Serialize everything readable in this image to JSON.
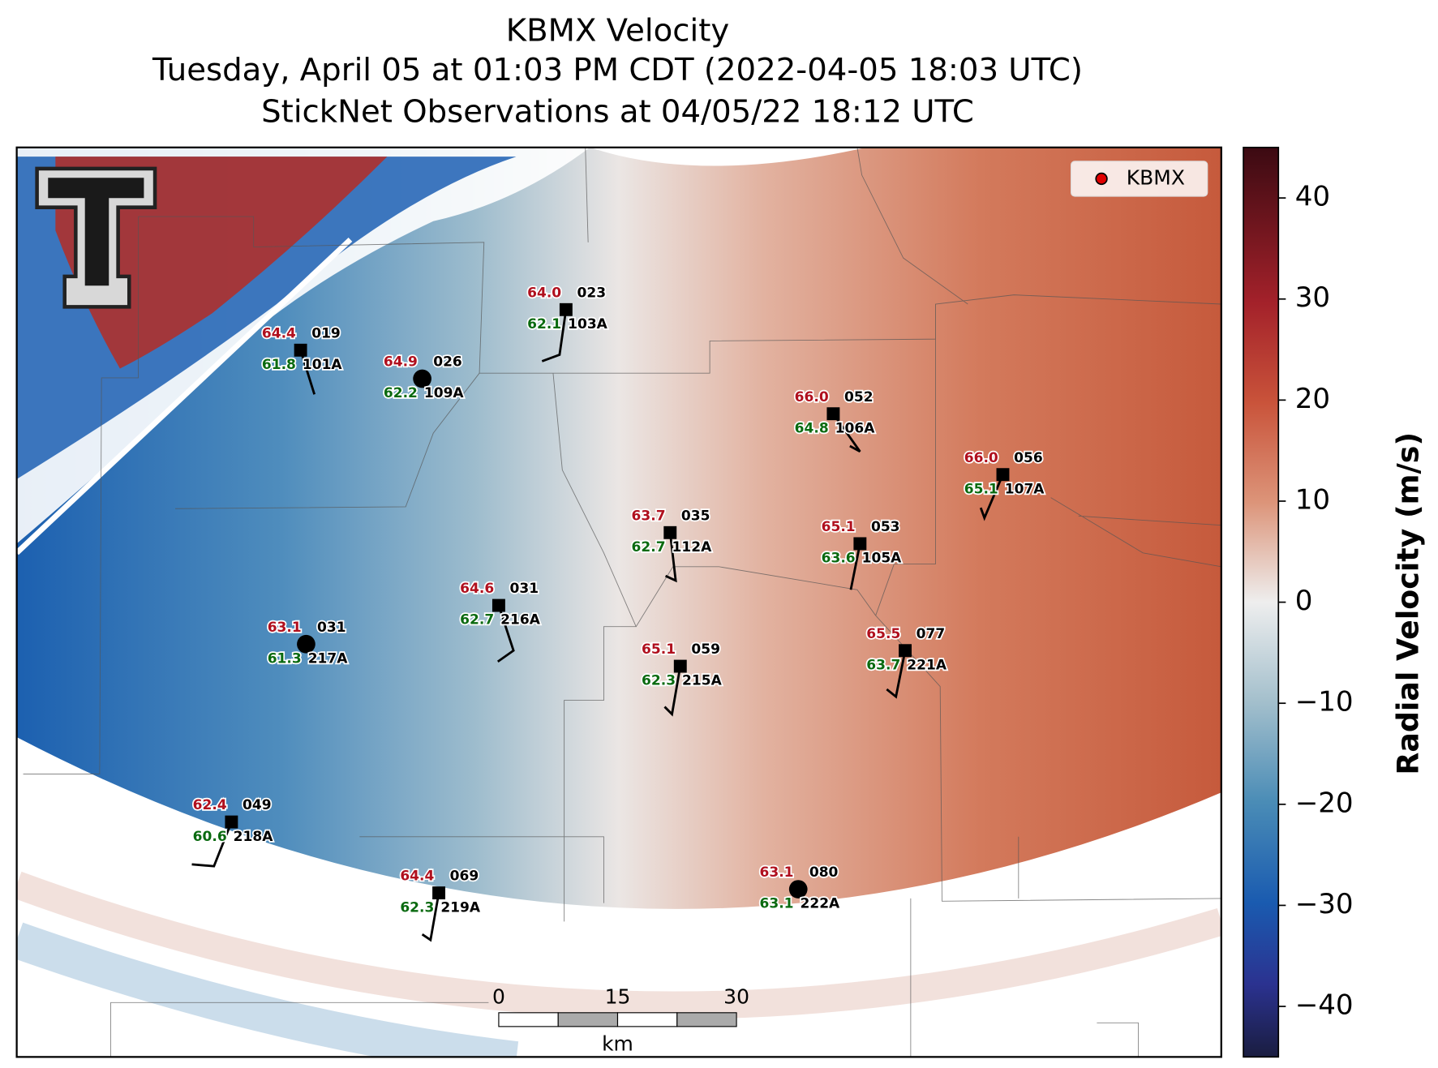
{
  "title": [
    "KBMX Velocity",
    "Tuesday, April 05 at 01:03 PM CDT (2022-04-05 18:03 UTC)",
    "StickNet Observations at 04/05/22 18:12 UTC"
  ],
  "legend": "KBMX",
  "colorbar": {
    "label": "Radial Velocity (m/s)",
    "range": [
      -45,
      45
    ],
    "ticks": [
      40,
      30,
      20,
      10,
      0,
      {
        "value": -10,
        "label": "−10"
      },
      {
        "value": -20,
        "label": "−20"
      },
      {
        "value": -30,
        "label": "−30"
      },
      {
        "value": -40,
        "label": "−40"
      }
    ]
  },
  "stations": [
    {
      "id": "019",
      "code": "101A",
      "temperature": "64.4",
      "dewpoint": "61.8"
    },
    {
      "id": "026",
      "code": "109A",
      "temperature": "64.9",
      "dewpoint": "62.2"
    },
    {
      "id": "023",
      "code": "103A",
      "temperature": "64.0",
      "dewpoint": "62.1"
    },
    {
      "id": "052",
      "code": "106A",
      "temperature": "66.0",
      "dewpoint": "64.8"
    },
    {
      "id": "056",
      "code": "107A",
      "temperature": "66.0",
      "dewpoint": "65.1"
    },
    {
      "id": "035",
      "code": "112A",
      "temperature": "63.7",
      "dewpoint": "62.7"
    },
    {
      "id": "053",
      "code": "105A",
      "temperature": "65.1",
      "dewpoint": "63.6"
    },
    {
      "id": "031",
      "code": "216A",
      "temperature": "64.6",
      "dewpoint": "62.7"
    },
    {
      "id": "031",
      "code": "217A",
      "temperature": "63.1",
      "dewpoint": "61.3"
    },
    {
      "id": "059",
      "code": "215A",
      "temperature": "65.1",
      "dewpoint": "62.3"
    },
    {
      "id": "077",
      "code": "221A",
      "temperature": "65.5",
      "dewpoint": "63.7"
    },
    {
      "id": "049",
      "code": "218A",
      "temperature": "62.4",
      "dewpoint": "60.6"
    },
    {
      "id": "069",
      "code": "219A",
      "temperature": "64.4",
      "dewpoint": "62.3"
    },
    {
      "id": "080",
      "code": "222A",
      "temperature": "63.1",
      "dewpoint": "63.1"
    }
  ],
  "scale_bar": {
    "ticks": [
      0,
      15,
      30
    ],
    "unit": "km"
  }
}
